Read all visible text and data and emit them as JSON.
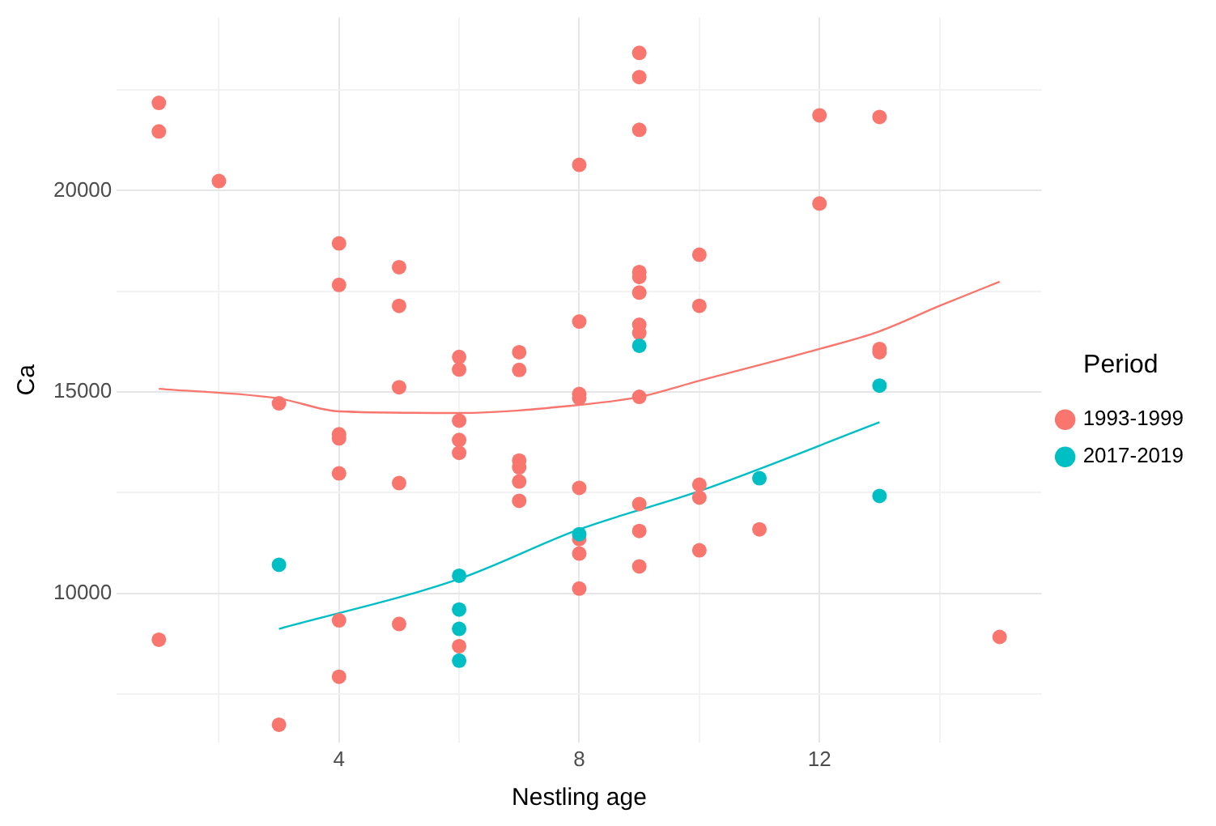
{
  "chart_data": {
    "type": "scatter",
    "xlabel": "Nestling age",
    "ylabel": "Ca",
    "legend_title": "Period",
    "legend": "right",
    "grid": true,
    "marker": "circle",
    "xlim": [
      0.3,
      15.7
    ],
    "xticks": [
      {
        "value": 2,
        "label": null
      },
      4,
      {
        "value": 6,
        "label": null
      },
      8,
      {
        "value": 10,
        "label": null
      },
      12,
      {
        "value": 14,
        "label": null
      }
    ],
    "ylim": [
      6300,
      24300
    ],
    "yticks": [
      {
        "value": 7500,
        "label": null
      },
      10000,
      {
        "value": 12500,
        "label": null
      },
      15000,
      {
        "value": 17500,
        "label": null
      },
      20000,
      {
        "value": 22500,
        "label": null
      }
    ],
    "series": [
      {
        "name": "1993-1999",
        "color": "#f8766d",
        "x": [
          1,
          1,
          1,
          2,
          3,
          3,
          4,
          4,
          4,
          4,
          4,
          4,
          4,
          5,
          5,
          5,
          5,
          5,
          6,
          6,
          6,
          6,
          6,
          6,
          7,
          7,
          7,
          7,
          7,
          7,
          8,
          8,
          8,
          8,
          8,
          8,
          8,
          8,
          9,
          9,
          9,
          9,
          9,
          9,
          9,
          9,
          9,
          9,
          9,
          9,
          10,
          10,
          10,
          10,
          10,
          11,
          12,
          12,
          13,
          13,
          13,
          15
        ],
        "values": [
          22180,
          21470,
          8850,
          20240,
          14720,
          6740,
          18690,
          17660,
          13950,
          13850,
          12980,
          9330,
          7930,
          18100,
          17140,
          15120,
          12740,
          9240,
          15870,
          15560,
          14290,
          13810,
          13490,
          8690,
          15990,
          15550,
          13300,
          13130,
          12780,
          12300,
          20640,
          16750,
          14950,
          14850,
          12620,
          11350,
          10990,
          10120,
          23420,
          22820,
          21510,
          17980,
          17860,
          17470,
          16670,
          16470,
          14880,
          12220,
          11550,
          10670,
          18410,
          17140,
          12700,
          12380,
          11070,
          11590,
          21870,
          19680,
          21830,
          16070,
          15990,
          8920
        ]
      },
      {
        "name": "2017-2019",
        "color": "#00bfc4",
        "x": [
          3,
          6,
          6,
          6,
          6,
          8,
          9,
          11,
          13,
          13
        ],
        "values": [
          10710,
          10440,
          9600,
          9120,
          8330,
          11470,
          16150,
          12860,
          15160,
          12420
        ]
      },
      {
        "type": "line",
        "color": "#f8766d",
        "marker": "none",
        "x": [
          1,
          3,
          4,
          6,
          8,
          9,
          10,
          12,
          13,
          14,
          15
        ],
        "values": [
          15080,
          14840,
          14520,
          14480,
          14680,
          14880,
          15280,
          16070,
          16510,
          17140,
          17740
        ]
      },
      {
        "type": "line",
        "color": "#00bfc4",
        "marker": "none",
        "x": [
          3,
          6,
          8,
          10,
          13
        ],
        "values": [
          9120,
          10360,
          11590,
          12540,
          14250
        ]
      }
    ]
  }
}
